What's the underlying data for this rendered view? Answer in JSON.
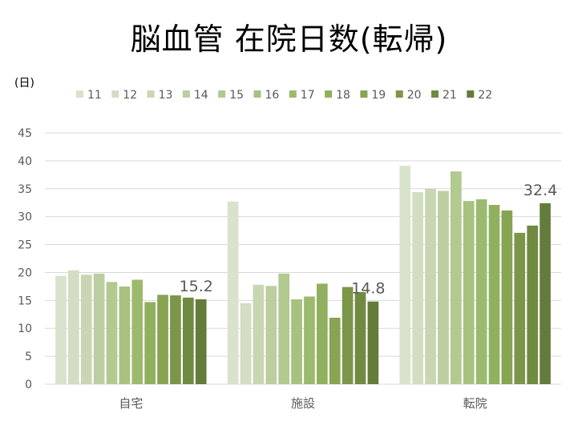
{
  "chart_data": {
    "type": "bar",
    "title": "脳血管 在院日数(転帰)",
    "ylabel": "(日)",
    "xlabel": "",
    "ylim": [
      0,
      45
    ],
    "yticks": [
      0,
      5,
      10,
      15,
      20,
      25,
      30,
      35,
      40,
      45
    ],
    "grid": true,
    "legend_position": "top",
    "categories": [
      "自宅",
      "施設",
      "転院"
    ],
    "series": [
      {
        "name": "11",
        "color": "#d9e2cc",
        "values": [
          19.4,
          32.7,
          39.1
        ]
      },
      {
        "name": "12",
        "color": "#d2ddc2",
        "values": [
          20.4,
          14.5,
          34.4
        ]
      },
      {
        "name": "13",
        "color": "#c8d6b3",
        "values": [
          19.6,
          17.8,
          35.0
        ]
      },
      {
        "name": "14",
        "color": "#bcce9f",
        "values": [
          19.8,
          17.6,
          34.6
        ]
      },
      {
        "name": "15",
        "color": "#b2c98f",
        "values": [
          18.3,
          19.8,
          38.1
        ]
      },
      {
        "name": "16",
        "color": "#a7c27f",
        "values": [
          17.5,
          15.2,
          32.8
        ]
      },
      {
        "name": "17",
        "color": "#9cba6d",
        "values": [
          18.7,
          15.7,
          33.1
        ]
      },
      {
        "name": "18",
        "color": "#91b05e",
        "values": [
          14.7,
          18.0,
          32.1
        ]
      },
      {
        "name": "19",
        "color": "#86a452",
        "values": [
          16.0,
          11.9,
          31.1
        ]
      },
      {
        "name": "20",
        "color": "#7b9649",
        "values": [
          15.9,
          17.4,
          27.1
        ]
      },
      {
        "name": "21",
        "color": "#708a42",
        "values": [
          15.5,
          16.5,
          28.4
        ]
      },
      {
        "name": "22",
        "color": "#647c3b",
        "values": [
          15.2,
          14.8,
          32.4
        ]
      }
    ],
    "data_labels": [
      {
        "category": "自宅",
        "series": "22",
        "text": "15.2"
      },
      {
        "category": "施設",
        "series": "22",
        "text": "14.8"
      },
      {
        "category": "転院",
        "series": "22",
        "text": "32.4"
      }
    ]
  },
  "colors": {
    "gridline": "#d9d9d9",
    "axis_text": "#595959"
  }
}
